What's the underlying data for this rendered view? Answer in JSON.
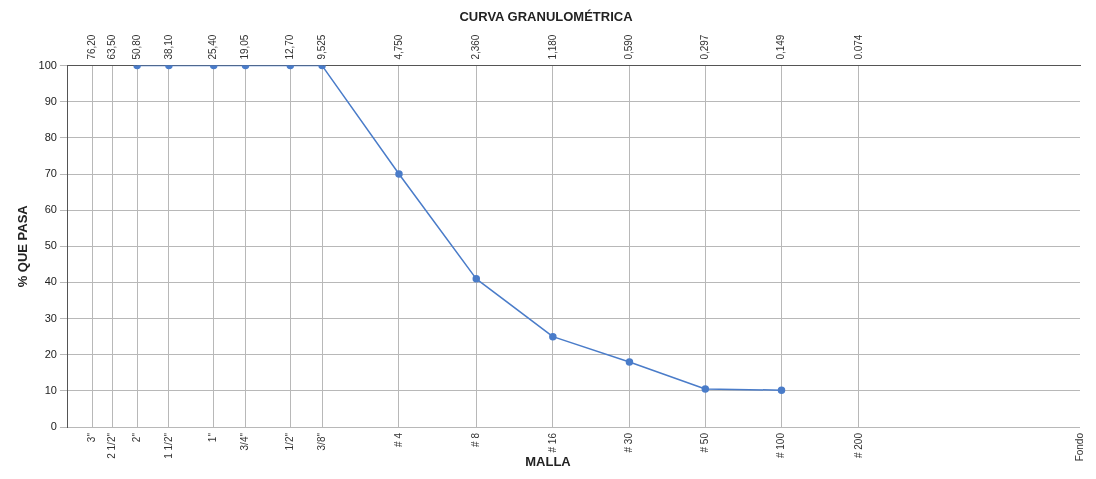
{
  "chart_data": {
    "type": "line",
    "title": "CURVA GRANULOMÉTRICA",
    "xlabel": "MALLA",
    "ylabel": "% QUE PASA",
    "x": [
      50.8,
      38.1,
      25.4,
      19.05,
      12.7,
      9.525,
      4.75,
      2.36,
      1.18,
      0.59,
      0.297,
      0.149
    ],
    "series": [
      {
        "color": "#4a7cc9",
        "values": [
          100,
          100,
          100,
          100,
          100,
          100,
          70,
          41,
          25,
          18,
          10.5,
          10.2
        ]
      }
    ],
    "log": "x",
    "xlim": [
      95,
      0.01
    ],
    "xticks": [
      {
        "value": 76.2,
        "label": "76,20"
      },
      {
        "value": 63.5,
        "label": "63,50"
      },
      {
        "value": 50.8,
        "label": "50,80"
      },
      {
        "value": 38.1,
        "label": "38,10"
      },
      {
        "value": 25.4,
        "label": "25,40"
      },
      {
        "value": 19.05,
        "label": "19,05"
      },
      {
        "value": 12.7,
        "label": "12,70"
      },
      {
        "value": 9.525,
        "label": "9,525"
      },
      {
        "value": 4.75,
        "label": "4,750"
      },
      {
        "value": 2.36,
        "label": "2,360"
      },
      {
        "value": 1.18,
        "label": "1,180"
      },
      {
        "value": 0.59,
        "label": "0,590"
      },
      {
        "value": 0.297,
        "label": "0,297"
      },
      {
        "value": 0.149,
        "label": "0,149"
      },
      {
        "value": 0.074,
        "label": "0.074"
      }
    ],
    "annotations": [
      "3\"",
      "2 1/2\"",
      "2\"",
      "1 1/2\"",
      "1\"",
      "3/4\"",
      "1/2\"",
      "3/8\"",
      "# 4",
      "# 8",
      "# 16",
      "# 30",
      "# 50",
      "# 100",
      "# 200",
      "Fondo"
    ],
    "ylim": [
      0,
      100
    ],
    "yticks": [
      0,
      10,
      20,
      30,
      40,
      50,
      60,
      70,
      80,
      90,
      100
    ],
    "grid": true,
    "marker": "circle",
    "line_style": "solid",
    "legend": false
  }
}
